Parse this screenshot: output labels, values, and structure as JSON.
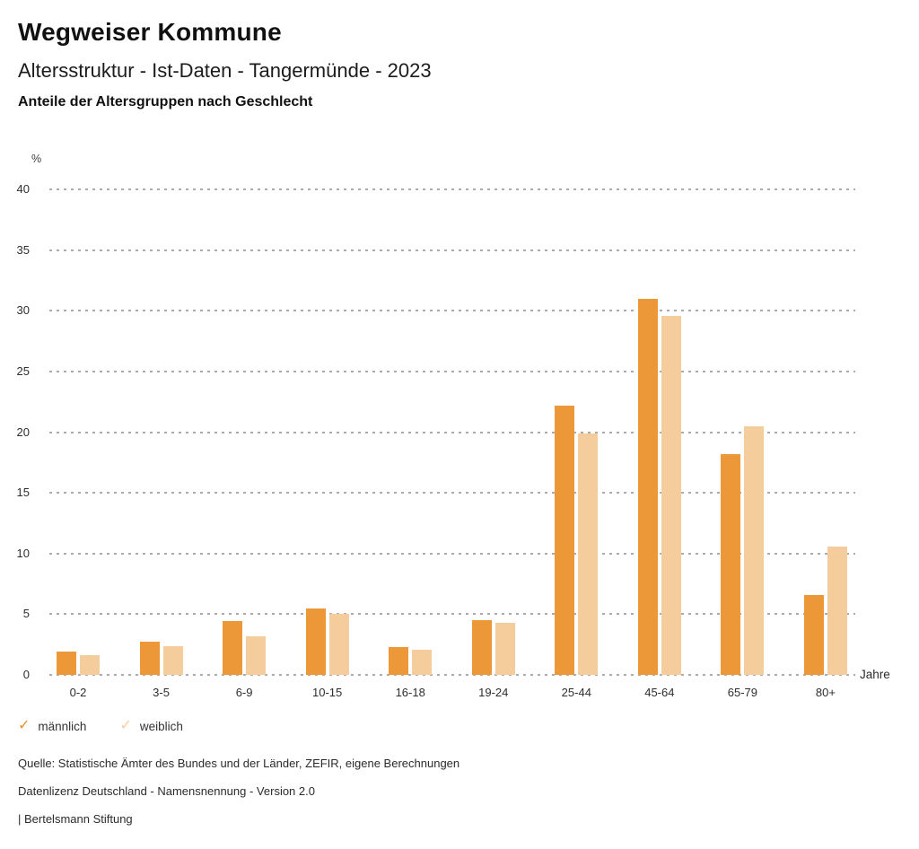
{
  "header": {
    "title": "Wegweiser Kommune",
    "subtitle": "Altersstruktur - Ist-Daten - Tangermünde - 2023",
    "chart_heading": "Anteile der Altersgruppen nach Geschlecht"
  },
  "chart_data": {
    "type": "bar",
    "grouped": true,
    "title": "Anteile der Altersgruppen nach Geschlecht",
    "categories": [
      "0-2",
      "3-5",
      "6-9",
      "10-15",
      "16-18",
      "19-24",
      "25-44",
      "45-64",
      "65-79",
      "80+"
    ],
    "series": [
      {
        "name": "männlich",
        "color": "#EC9838",
        "values": [
          1.9,
          2.7,
          4.4,
          5.5,
          2.3,
          4.5,
          22.2,
          31.0,
          18.2,
          6.6
        ]
      },
      {
        "name": "weiblich",
        "color": "#F5CD9D",
        "values": [
          1.6,
          2.4,
          3.2,
          5.0,
          2.1,
          4.3,
          19.9,
          29.6,
          20.5,
          10.6
        ]
      }
    ],
    "y_unit": "%",
    "x_unit": "Jahre",
    "ylim": [
      0,
      40
    ],
    "yticks": [
      0,
      5,
      10,
      15,
      20,
      25,
      30,
      35,
      40
    ],
    "legend_position": "bottom-left",
    "grid": "horizontal-dashed"
  },
  "legend": {
    "items": [
      {
        "label": "männlich",
        "check_color": "#E8912D"
      },
      {
        "label": "weiblich",
        "check_color": "#F6CFA0"
      }
    ]
  },
  "footer": {
    "source": "Quelle: Statistische Ämter des Bundes und der Länder, ZEFIR, eigene Berechnungen",
    "license": "Datenlizenz Deutschland - Namensnennung - Version 2.0",
    "attribution": "| Bertelsmann Stiftung"
  }
}
